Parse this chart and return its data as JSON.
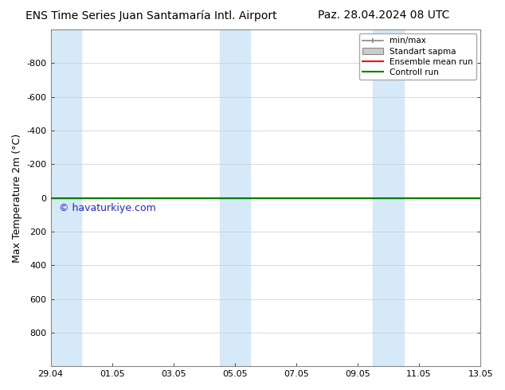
{
  "title_left": "ENS Time Series Juan Santamaría Intl. Airport",
  "title_right": "Paz. 28.04.2024 08 UTC",
  "ylabel": "Max Temperature 2m (°C)",
  "ylim_top": -1000,
  "ylim_bottom": 1000,
  "yticks": [
    -800,
    -600,
    -400,
    -200,
    0,
    200,
    400,
    600,
    800
  ],
  "xtick_labels": [
    "29.04",
    "01.05",
    "03.05",
    "05.05",
    "07.05",
    "09.05",
    "11.05",
    "13.05"
  ],
  "xtick_positions": [
    0,
    2,
    4,
    6,
    8,
    10,
    12,
    14
  ],
  "x_start": 0,
  "x_end": 14,
  "background_color": "#ffffff",
  "plot_bg_color": "#ffffff",
  "shade_color": "#d6e9f8",
  "shaded_regions": [
    [
      0.0,
      1.0
    ],
    [
      5.5,
      6.0
    ],
    [
      6.0,
      6.5
    ],
    [
      10.5,
      11.0
    ],
    [
      11.0,
      11.5
    ]
  ],
  "green_line_y": 0,
  "green_line_color": "#008000",
  "red_line_y": 0,
  "red_line_color": "#ff0000",
  "watermark_text": "© havaturkiye.com",
  "watermark_color": "#0000bb",
  "legend_labels": [
    "min/max",
    "Standart sapma",
    "Ensemble mean run",
    "Controll run"
  ],
  "legend_colors_line": [
    "#888888",
    "#cccccc",
    "#ff0000",
    "#008000"
  ],
  "title_fontsize": 10,
  "axis_fontsize": 9,
  "tick_fontsize": 8,
  "watermark_fontsize": 9
}
